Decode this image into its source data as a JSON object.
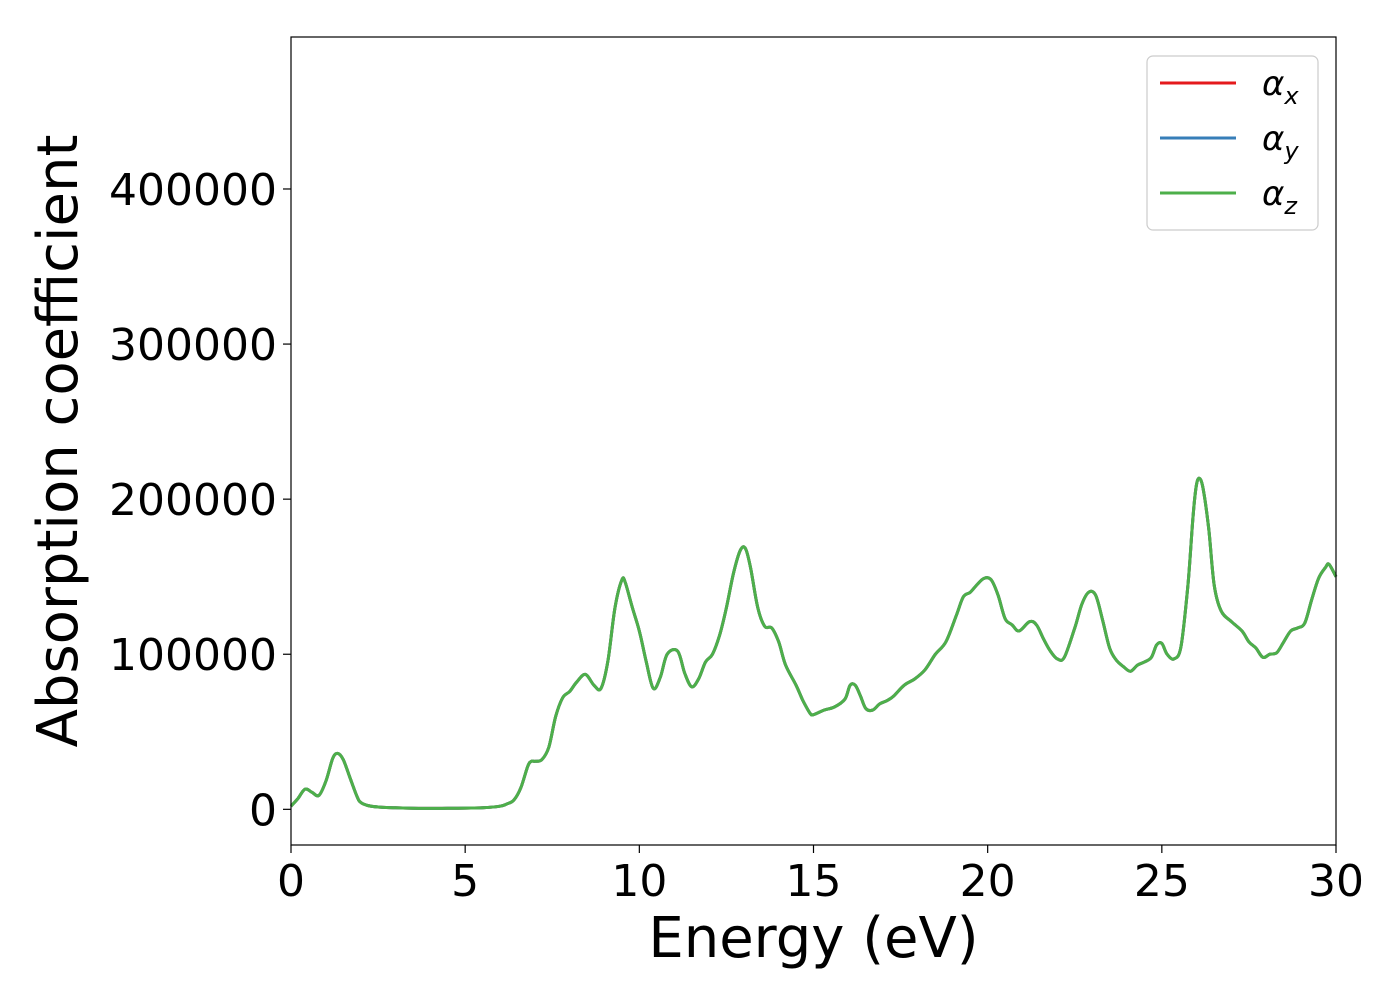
{
  "chart_data": {
    "type": "line",
    "xlabel": "Energy (eV)",
    "ylabel": "Absorption coefficient",
    "xlim": [
      0,
      30
    ],
    "ylim": [
      -23000,
      498000
    ],
    "x_ticks": [
      "0",
      "5",
      "10",
      "15",
      "20",
      "25",
      "30"
    ],
    "x_tick_values": [
      0,
      5,
      10,
      15,
      20,
      25,
      30
    ],
    "y_ticks": [
      "0",
      "100000",
      "200000",
      "300000",
      "400000"
    ],
    "y_tick_values": [
      0,
      100000,
      200000,
      300000,
      400000
    ],
    "grid": false,
    "legend_position": "top-right",
    "x": [
      0,
      0.2,
      0.4,
      0.6,
      0.8,
      1.0,
      1.2,
      1.35,
      1.5,
      1.7,
      1.9,
      2.0,
      2.2,
      2.5,
      3.0,
      3.5,
      4.0,
      4.5,
      5.0,
      5.5,
      6.0,
      6.2,
      6.4,
      6.6,
      6.8,
      6.9,
      7.0,
      7.2,
      7.4,
      7.6,
      7.8,
      8.0,
      8.2,
      8.45,
      8.7,
      8.9,
      9.1,
      9.3,
      9.5,
      9.6,
      9.8,
      10.0,
      10.2,
      10.4,
      10.6,
      10.8,
      11.1,
      11.3,
      11.5,
      11.7,
      11.9,
      12.1,
      12.3,
      12.5,
      12.7,
      12.9,
      13.05,
      13.2,
      13.4,
      13.6,
      13.8,
      14.0,
      14.2,
      14.5,
      14.7,
      14.9,
      15.0,
      15.3,
      15.6,
      15.9,
      16.05,
      16.2,
      16.35,
      16.5,
      16.7,
      16.9,
      17.1,
      17.3,
      17.6,
      17.9,
      18.2,
      18.5,
      18.8,
      19.1,
      19.3,
      19.5,
      19.7,
      19.9,
      20.1,
      20.3,
      20.5,
      20.7,
      20.9,
      21.2,
      21.4,
      21.6,
      21.8,
      22.0,
      22.2,
      22.5,
      22.7,
      22.9,
      23.1,
      23.3,
      23.5,
      23.7,
      23.9,
      24.1,
      24.3,
      24.5,
      24.7,
      24.85,
      25.0,
      25.15,
      25.35,
      25.55,
      25.75,
      25.9,
      26.0,
      26.1,
      26.2,
      26.35,
      26.5,
      26.7,
      27.0,
      27.3,
      27.5,
      27.7,
      27.9,
      28.1,
      28.3,
      28.5,
      28.7,
      28.9,
      29.1,
      29.3,
      29.5,
      29.7,
      29.8,
      30.0
    ],
    "series": [
      {
        "name": "αx",
        "color": "#e41a1c",
        "values": [
          2000,
          7000,
          13000,
          11000,
          9000,
          18000,
          33000,
          36000,
          32000,
          20000,
          8000,
          4500,
          2500,
          1500,
          1000,
          700,
          600,
          700,
          800,
          1000,
          2000,
          3500,
          6000,
          14000,
          28000,
          31000,
          31000,
          32000,
          40000,
          60000,
          72000,
          76000,
          82000,
          87000,
          80000,
          78000,
          96000,
          130000,
          148000,
          146000,
          130000,
          115000,
          95000,
          78000,
          85000,
          100000,
          102000,
          88000,
          79000,
          84000,
          95000,
          100000,
          112000,
          130000,
          152000,
          167000,
          168000,
          155000,
          130000,
          118000,
          117000,
          108000,
          93000,
          80000,
          70000,
          62000,
          61000,
          64000,
          66000,
          71000,
          80000,
          80000,
          73000,
          65000,
          64000,
          68000,
          70000,
          73000,
          80000,
          84000,
          90000,
          100000,
          108000,
          125000,
          137000,
          140000,
          145000,
          149000,
          148000,
          138000,
          123000,
          119000,
          115000,
          121000,
          119000,
          110000,
          102000,
          97000,
          98000,
          117000,
          132000,
          140000,
          138000,
          122000,
          104000,
          96000,
          92000,
          89000,
          93000,
          95000,
          98000,
          106000,
          107000,
          100000,
          97000,
          105000,
          145000,
          190000,
          210000,
          213000,
          205000,
          180000,
          145000,
          128000,
          121000,
          115000,
          108000,
          104000,
          98000,
          100000,
          101000,
          108000,
          115000,
          117000,
          120000,
          135000,
          149000,
          156000,
          158000,
          150000
        ]
      },
      {
        "name": "αy",
        "color": "#377eb8",
        "values": [
          2000,
          7000,
          13000,
          11000,
          9000,
          18000,
          33000,
          36000,
          32000,
          20000,
          8000,
          4500,
          2500,
          1500,
          1000,
          700,
          600,
          700,
          800,
          1000,
          2000,
          3500,
          6000,
          14000,
          28000,
          31000,
          31000,
          32000,
          40000,
          60000,
          72000,
          76000,
          82000,
          87000,
          80000,
          78000,
          96000,
          130000,
          148000,
          146000,
          130000,
          115000,
          95000,
          78000,
          85000,
          100000,
          102000,
          88000,
          79000,
          84000,
          95000,
          100000,
          112000,
          130000,
          152000,
          167000,
          168000,
          155000,
          130000,
          118000,
          117000,
          108000,
          93000,
          80000,
          70000,
          62000,
          61000,
          64000,
          66000,
          71000,
          80000,
          80000,
          73000,
          65000,
          64000,
          68000,
          70000,
          73000,
          80000,
          84000,
          90000,
          100000,
          108000,
          125000,
          137000,
          140000,
          145000,
          149000,
          148000,
          138000,
          123000,
          119000,
          115000,
          121000,
          119000,
          110000,
          102000,
          97000,
          98000,
          117000,
          132000,
          140000,
          138000,
          122000,
          104000,
          96000,
          92000,
          89000,
          93000,
          95000,
          98000,
          106000,
          107000,
          100000,
          97000,
          105000,
          145000,
          190000,
          210000,
          213000,
          205000,
          180000,
          145000,
          128000,
          121000,
          115000,
          108000,
          104000,
          98000,
          100000,
          101000,
          108000,
          115000,
          117000,
          120000,
          135000,
          149000,
          156000,
          158000,
          150000
        ]
      },
      {
        "name": "αz",
        "color": "#4daf4a",
        "values": [
          2000,
          7000,
          13000,
          11000,
          9000,
          18000,
          33000,
          36000,
          32000,
          20000,
          8000,
          4500,
          2500,
          1500,
          1000,
          700,
          600,
          700,
          800,
          1000,
          2000,
          3500,
          6000,
          14000,
          28000,
          31000,
          31000,
          32000,
          40000,
          60000,
          72000,
          76000,
          82000,
          87000,
          80000,
          78000,
          96000,
          130000,
          148000,
          146000,
          130000,
          115000,
          95000,
          78000,
          85000,
          100000,
          102000,
          88000,
          79000,
          84000,
          95000,
          100000,
          112000,
          130000,
          152000,
          167000,
          168000,
          155000,
          130000,
          118000,
          117000,
          108000,
          93000,
          80000,
          70000,
          62000,
          61000,
          64000,
          66000,
          71000,
          80000,
          80000,
          73000,
          65000,
          64000,
          68000,
          70000,
          73000,
          80000,
          84000,
          90000,
          100000,
          108000,
          125000,
          137000,
          140000,
          145000,
          149000,
          148000,
          138000,
          123000,
          119000,
          115000,
          121000,
          119000,
          110000,
          102000,
          97000,
          98000,
          117000,
          132000,
          140000,
          138000,
          122000,
          104000,
          96000,
          92000,
          89000,
          93000,
          95000,
          98000,
          106000,
          107000,
          100000,
          97000,
          105000,
          145000,
          190000,
          210000,
          213000,
          205000,
          180000,
          145000,
          128000,
          121000,
          115000,
          108000,
          104000,
          98000,
          100000,
          101000,
          108000,
          115000,
          117000,
          120000,
          135000,
          149000,
          156000,
          158000,
          150000
        ]
      }
    ],
    "legend": [
      {
        "symbol": "α",
        "sub": "x",
        "color": "#e41a1c"
      },
      {
        "symbol": "α",
        "sub": "y",
        "color": "#377eb8"
      },
      {
        "symbol": "α",
        "sub": "z",
        "color": "#4daf4a"
      }
    ]
  }
}
